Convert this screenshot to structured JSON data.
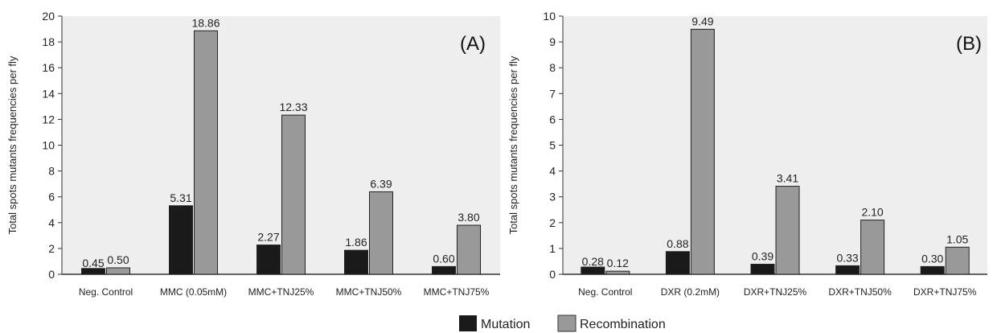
{
  "legend": {
    "items": [
      {
        "name": "Mutation",
        "color": "#1a1a1a"
      },
      {
        "name": "Recombination",
        "color": "#999999"
      }
    ]
  },
  "chart_data": [
    {
      "type": "bar",
      "panel_label": "(A)",
      "ylabel": "Total spots mutants  frequencies per fly",
      "ylim": [
        0,
        20
      ],
      "yticks": [
        0,
        2,
        4,
        6,
        8,
        10,
        12,
        14,
        16,
        18,
        20
      ],
      "categories": [
        "Neg. Control",
        "MMC (0.05mM)",
        "MMC+TNJ25%",
        "MMC+TNJ50%",
        "MMC+TNJ75%"
      ],
      "series": [
        {
          "name": "Mutation",
          "values": [
            0.45,
            5.31,
            2.27,
            1.86,
            0.6
          ]
        },
        {
          "name": "Recombination",
          "values": [
            0.5,
            18.86,
            12.33,
            6.39,
            3.8
          ]
        }
      ],
      "data_labels": [
        [
          "0.45",
          "5.31",
          "2.27",
          "1.86",
          "0.60"
        ],
        [
          "0.50",
          "18.86",
          "12.33",
          "6.39",
          "3.80"
        ]
      ],
      "grid": false,
      "legend_position": "bottom"
    },
    {
      "type": "bar",
      "panel_label": "(B)",
      "ylabel": "Total spots mutants  frequencies per fly",
      "ylim": [
        0,
        10
      ],
      "yticks": [
        0,
        1,
        2,
        3,
        4,
        5,
        6,
        7,
        8,
        9,
        10
      ],
      "categories": [
        "Neg. Control",
        "DXR (0.2mM)",
        "DXR+TNJ25%",
        "DXR+TNJ50%",
        "DXR+TNJ75%"
      ],
      "series": [
        {
          "name": "Mutation",
          "values": [
            0.28,
            0.88,
            0.39,
            0.33,
            0.3
          ]
        },
        {
          "name": "Recombination",
          "values": [
            0.12,
            9.49,
            3.41,
            2.1,
            1.05
          ]
        }
      ],
      "data_labels": [
        [
          "0.28",
          "0.88",
          "0.39",
          "0.33",
          "0.30"
        ],
        [
          "0.12",
          "9.49",
          "3.41",
          "2.10",
          "1.05"
        ]
      ],
      "grid": false,
      "legend_position": "bottom"
    }
  ]
}
